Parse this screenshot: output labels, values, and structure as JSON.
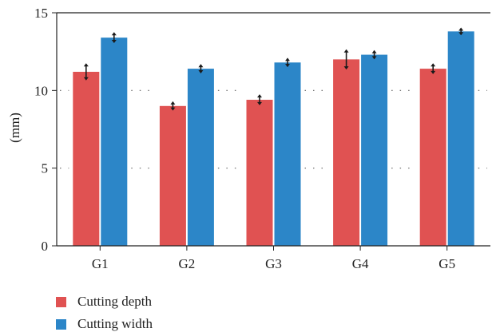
{
  "chart_data": {
    "type": "bar",
    "categories": [
      "G1",
      "G2",
      "G3",
      "G4",
      "G5"
    ],
    "series": [
      {
        "name": "Cutting depth",
        "values": [
          11.2,
          9.0,
          9.4,
          12.0,
          11.4
        ],
        "errors": [
          0.5,
          0.25,
          0.3,
          0.6,
          0.3
        ],
        "color": "#e05252"
      },
      {
        "name": "Cutting width",
        "values": [
          13.4,
          11.4,
          11.8,
          12.3,
          13.8
        ],
        "errors": [
          0.3,
          0.25,
          0.25,
          0.25,
          0.2
        ],
        "color": "#2c86c8"
      }
    ],
    "ylabel": "(mm)",
    "ylim": [
      0,
      15
    ],
    "yticks": [
      0,
      5,
      10,
      15
    ],
    "grid": "dotted horizontal at 5 and 10",
    "legend_position": "bottom-left"
  }
}
